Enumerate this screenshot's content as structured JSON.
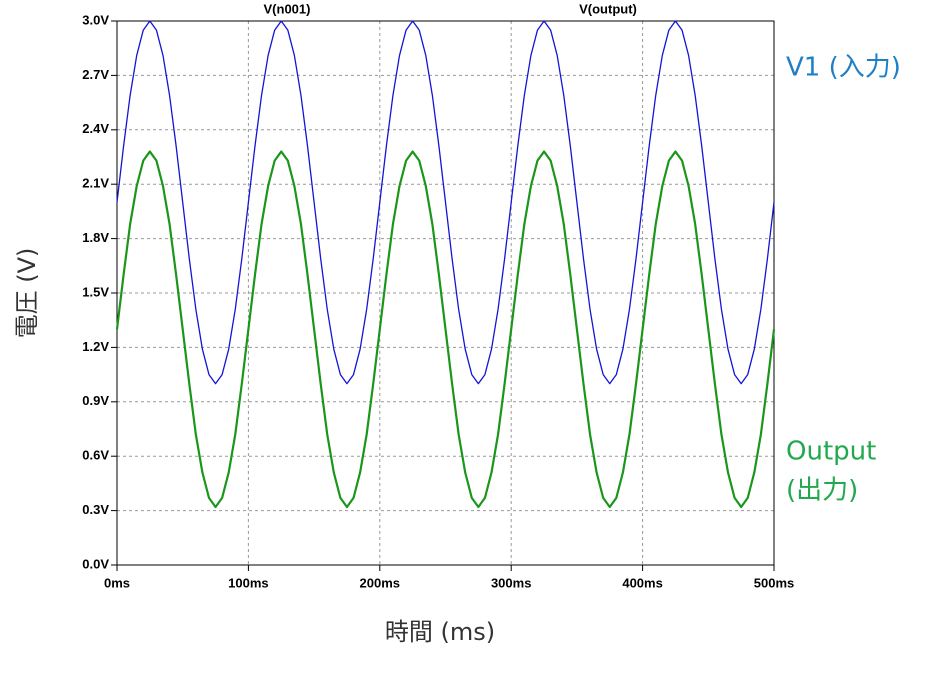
{
  "chart_data": {
    "type": "line",
    "xlabel": "時間 (ms)",
    "ylabel": "電圧 (V)",
    "x": [
      0,
      5,
      10,
      15,
      20,
      25,
      30,
      35,
      40,
      45,
      50,
      55,
      60,
      65,
      70,
      75,
      80,
      85,
      90,
      95,
      100,
      105,
      110,
      115,
      120,
      125,
      130,
      135,
      140,
      145,
      150,
      155,
      160,
      165,
      170,
      175,
      180,
      185,
      190,
      195,
      200,
      205,
      210,
      215,
      220,
      225,
      230,
      235,
      240,
      245,
      250,
      255,
      260,
      265,
      270,
      275,
      280,
      285,
      290,
      295,
      300,
      305,
      310,
      315,
      320,
      325,
      330,
      335,
      340,
      345,
      350,
      355,
      360,
      365,
      370,
      375,
      380,
      385,
      390,
      395,
      400,
      405,
      410,
      415,
      420,
      425,
      430,
      435,
      440,
      445,
      450,
      455,
      460,
      465,
      470,
      475,
      480,
      485,
      490,
      495,
      500
    ],
    "series": [
      {
        "name": "V(n001)",
        "color": "#1414d8",
        "values": [
          2,
          2.31,
          2.59,
          2.81,
          2.95,
          3,
          2.95,
          2.81,
          2.59,
          2.31,
          2,
          1.69,
          1.41,
          1.19,
          1.05,
          1,
          1.05,
          1.19,
          1.41,
          1.69,
          2,
          2.31,
          2.59,
          2.81,
          2.95,
          3,
          2.95,
          2.81,
          2.59,
          2.31,
          2,
          1.69,
          1.41,
          1.19,
          1.05,
          1,
          1.05,
          1.19,
          1.41,
          1.69,
          2,
          2.31,
          2.59,
          2.81,
          2.95,
          3,
          2.95,
          2.81,
          2.59,
          2.31,
          2,
          1.69,
          1.41,
          1.19,
          1.05,
          1,
          1.05,
          1.19,
          1.41,
          1.69,
          2,
          2.31,
          2.59,
          2.81,
          2.95,
          3,
          2.95,
          2.81,
          2.59,
          2.31,
          2,
          1.69,
          1.41,
          1.19,
          1.05,
          1,
          1.05,
          1.19,
          1.41,
          1.69,
          2,
          2.31,
          2.59,
          2.81,
          2.95,
          3,
          2.95,
          2.81,
          2.59,
          2.31,
          2,
          1.69,
          1.41,
          1.19,
          1.05,
          1,
          1.05,
          1.19,
          1.41,
          1.69,
          2
        ]
      },
      {
        "name": "V(output)",
        "color": "#1a961a",
        "values": [
          1.3,
          1.6,
          1.88,
          2.09,
          2.23,
          2.28,
          2.23,
          2.09,
          1.88,
          1.6,
          1.3,
          1,
          0.72,
          0.51,
          0.37,
          0.32,
          0.37,
          0.51,
          0.72,
          1,
          1.3,
          1.6,
          1.88,
          2.09,
          2.23,
          2.28,
          2.23,
          2.09,
          1.88,
          1.6,
          1.3,
          1,
          0.72,
          0.51,
          0.37,
          0.32,
          0.37,
          0.51,
          0.72,
          1,
          1.3,
          1.6,
          1.88,
          2.09,
          2.23,
          2.28,
          2.23,
          2.09,
          1.88,
          1.6,
          1.3,
          1,
          0.72,
          0.51,
          0.37,
          0.32,
          0.37,
          0.51,
          0.72,
          1,
          1.3,
          1.6,
          1.88,
          2.09,
          2.23,
          2.28,
          2.23,
          2.09,
          1.88,
          1.6,
          1.3,
          1,
          0.72,
          0.51,
          0.37,
          0.32,
          0.37,
          0.51,
          0.72,
          1,
          1.3,
          1.6,
          1.88,
          2.09,
          2.23,
          2.28,
          2.23,
          2.09,
          1.88,
          1.6,
          1.3,
          1,
          0.72,
          0.51,
          0.37,
          0.32,
          0.37,
          0.51,
          0.72,
          1,
          1.3
        ]
      }
    ],
    "xlim": [
      0,
      500
    ],
    "xticks": [
      {
        "value": 0,
        "label": "0ms"
      },
      {
        "value": 100,
        "label": "100ms"
      },
      {
        "value": 200,
        "label": "200ms"
      },
      {
        "value": 300,
        "label": "300ms"
      },
      {
        "value": 400,
        "label": "400ms"
      },
      {
        "value": 500,
        "label": "500ms"
      }
    ],
    "ylim": [
      0,
      3
    ],
    "yticks": [
      {
        "value": 0,
        "label": "0.0V"
      },
      {
        "value": 0.3,
        "label": "0.3V"
      },
      {
        "value": 0.6,
        "label": "0.6V"
      },
      {
        "value": 0.9,
        "label": "0.9V"
      },
      {
        "value": 1.2,
        "label": "1.2V"
      },
      {
        "value": 1.5,
        "label": "1.5V"
      },
      {
        "value": 1.8,
        "label": "1.8V"
      },
      {
        "value": 2.1,
        "label": "2.1V"
      },
      {
        "value": 2.4,
        "label": "2.4V"
      },
      {
        "value": 2.7,
        "label": "2.7V"
      },
      {
        "value": 3,
        "label": "3.0V"
      }
    ],
    "grid": true,
    "annotations": [
      {
        "text": "V1 (入力)",
        "color": "#1f7fc4"
      },
      {
        "text": "Output",
        "color": "#22a84e"
      },
      {
        "text": "(出力)",
        "color": "#22a84e"
      }
    ]
  }
}
